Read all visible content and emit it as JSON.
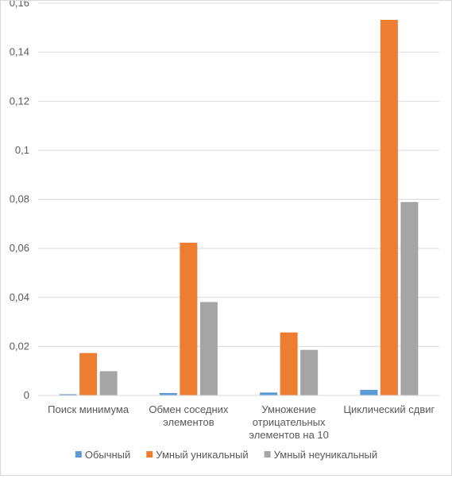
{
  "chart_data": {
    "type": "bar",
    "title": "",
    "xlabel": "",
    "ylabel": "",
    "ylim": [
      0,
      0.16
    ],
    "yticks": [
      "0",
      "0,02",
      "0,04",
      "0,06",
      "0,08",
      "0,1",
      "0,12",
      "0,14",
      "0,16"
    ],
    "grid": true,
    "legend_position": "bottom",
    "categories": [
      [
        "Поиск минимума"
      ],
      [
        "Обмен соседних",
        "элементов"
      ],
      [
        "Умножение",
        "отрицательных",
        "элементов на 10"
      ],
      [
        "Циклический сдвиг"
      ]
    ],
    "series": [
      {
        "name": "Обычный",
        "color": "#5b9bd5",
        "values": [
          0.0005,
          0.001,
          0.0012,
          0.0023
        ]
      },
      {
        "name": "Умный уникальный",
        "color": "#ed7d31",
        "values": [
          0.0173,
          0.0623,
          0.0257,
          0.1532
        ]
      },
      {
        "name": "Умный неуникальный",
        "color": "#a5a5a5",
        "values": [
          0.0099,
          0.0381,
          0.0186,
          0.0789
        ]
      }
    ]
  }
}
